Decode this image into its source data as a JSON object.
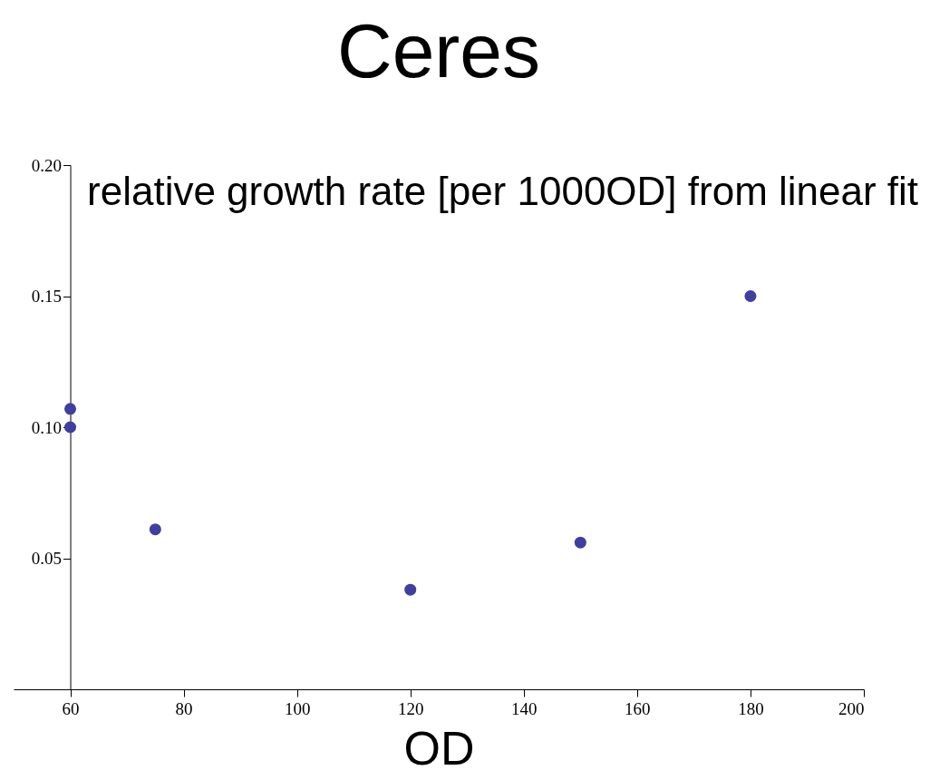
{
  "chart_data": {
    "type": "scatter",
    "title": "Ceres",
    "xlabel": "OD",
    "ylabel": "relative growth rate [per 1000OD] from linear fit",
    "x": [
      60,
      60,
      75,
      120,
      150,
      180
    ],
    "series": [
      {
        "color": "#3f3f9f",
        "values": [
          0.107,
          0.1,
          0.061,
          0.038,
          0.056,
          0.15
        ]
      }
    ],
    "xlim": [
      50,
      200
    ],
    "xticks": [
      60,
      80,
      100,
      120,
      140,
      160,
      180,
      200
    ],
    "ylim": [
      0,
      0.2
    ],
    "yticks": [
      {
        "value": 0.05,
        "label": "0.05"
      },
      {
        "value": 0.1,
        "label": "0.10"
      },
      {
        "value": 0.15,
        "label": "0.15"
      },
      {
        "value": 0.2,
        "label": "0.20"
      }
    ],
    "grid": false,
    "marker": "circle"
  }
}
